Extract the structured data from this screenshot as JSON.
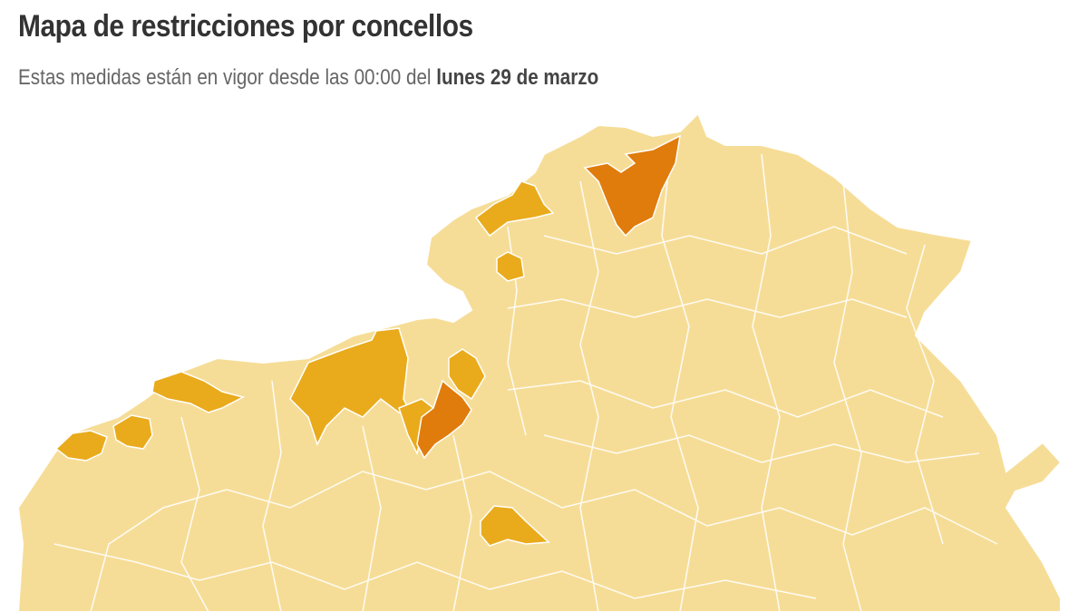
{
  "header": {
    "title": "Mapa de restricciones por concellos",
    "subtitle_prefix": "Estas medidas están en vigor desde las 00:00 del",
    "subtitle_date": "lunes 29 de marzo"
  },
  "map": {
    "colors": {
      "base": "#f6dd97",
      "medium": "#e9ab1c",
      "high": "#e07c0c",
      "border": "#ffffff"
    },
    "levels_shown": [
      "base",
      "medium",
      "high"
    ]
  }
}
